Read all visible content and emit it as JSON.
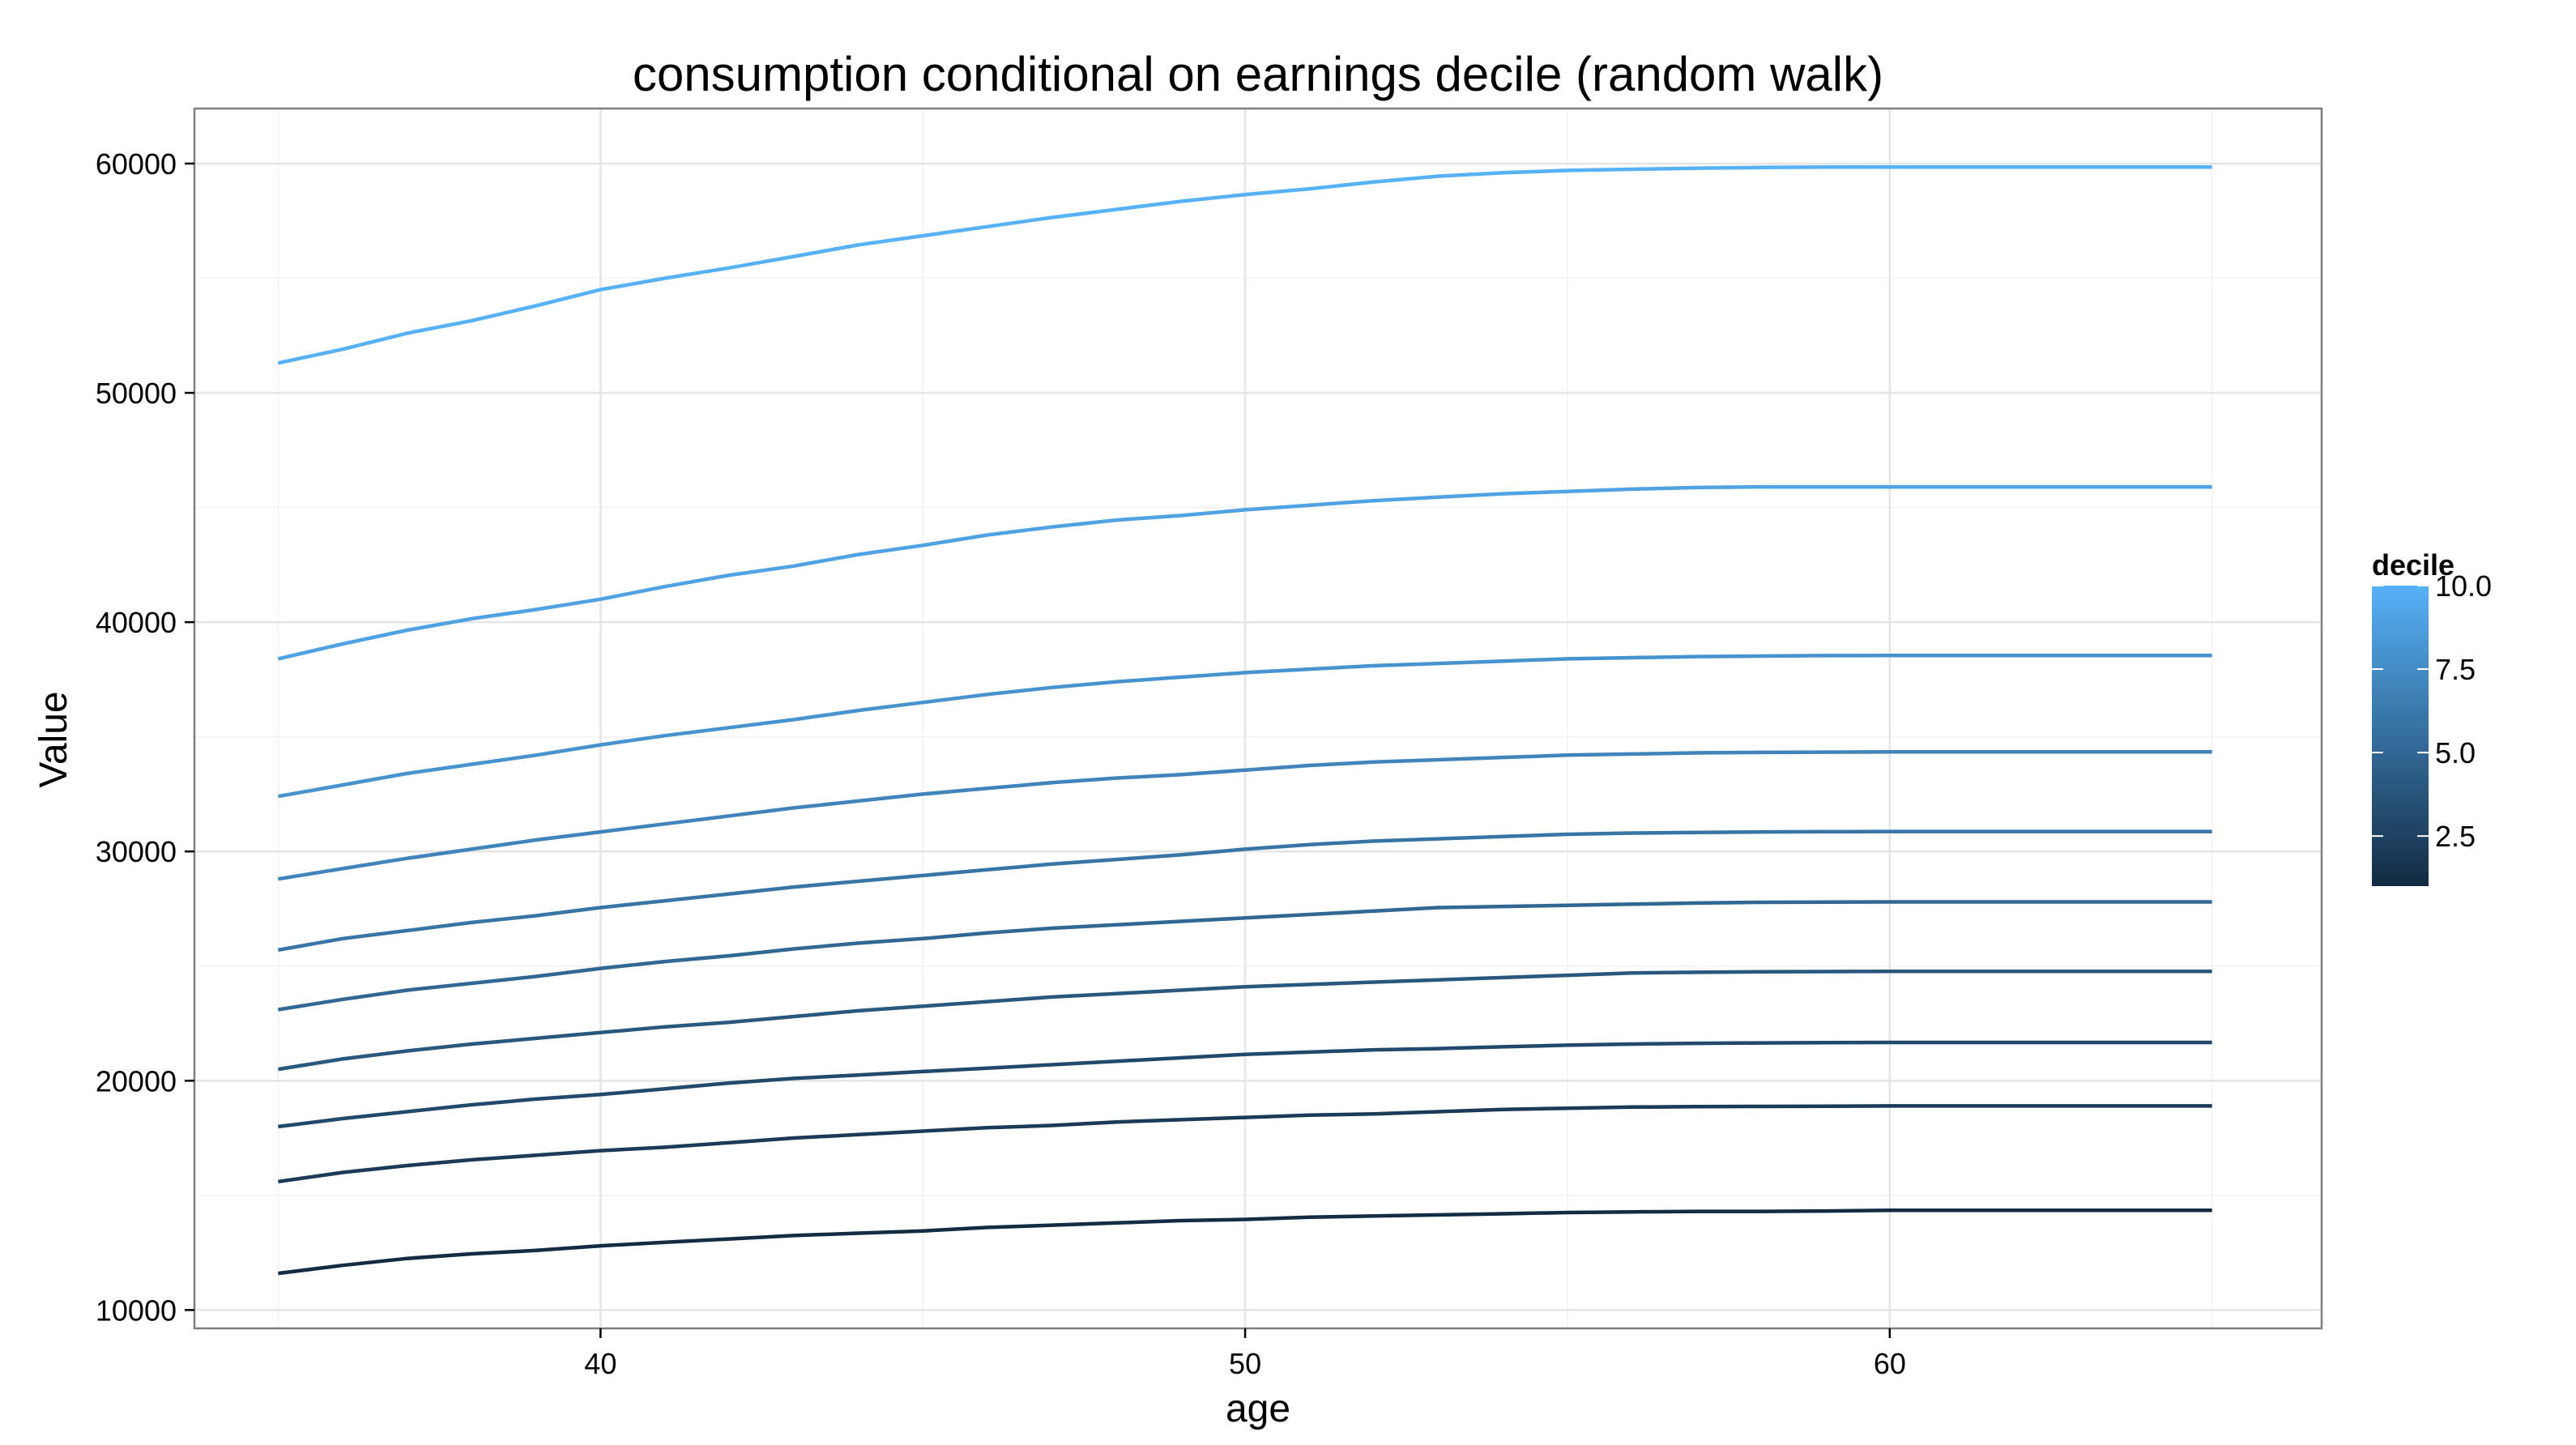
{
  "chart_data": {
    "type": "line",
    "title": "consumption conditional on earnings decile (random walk)",
    "xlabel": "age",
    "ylabel": "Value",
    "xlim": [
      33.7,
      66.7
    ],
    "ylim": [
      9200,
      62400
    ],
    "x_ticks": [
      40,
      50,
      60
    ],
    "y_ticks": [
      10000,
      20000,
      30000,
      40000,
      50000,
      60000
    ],
    "grid": true,
    "legend": {
      "title": "decile",
      "type": "colorbar",
      "placement": "right",
      "range": [
        1,
        10
      ],
      "ticks": [
        "2.5",
        "5.0",
        "7.5",
        "10.0"
      ],
      "tick_values": [
        2.5,
        5.0,
        7.5,
        10.0
      ],
      "low_color": "#132B43",
      "high_color": "#56B1F7"
    },
    "x": [
      35,
      36,
      37,
      38,
      39,
      40,
      41,
      42,
      43,
      44,
      45,
      46,
      47,
      48,
      49,
      50,
      51,
      52,
      53,
      54,
      55,
      56,
      57,
      58,
      59,
      60,
      61,
      62,
      63,
      64,
      65
    ],
    "series": [
      {
        "decile": 1,
        "values": [
          11600,
          11950,
          12250,
          12450,
          12600,
          12800,
          12950,
          13100,
          13250,
          13350,
          13450,
          13600,
          13700,
          13800,
          13900,
          13950,
          14050,
          14100,
          14150,
          14200,
          14250,
          14280,
          14300,
          14300,
          14320,
          14350,
          14350,
          14350,
          14350,
          14350,
          14350
        ]
      },
      {
        "decile": 2,
        "values": [
          15600,
          16000,
          16300,
          16550,
          16750,
          16950,
          17100,
          17300,
          17500,
          17650,
          17800,
          17950,
          18050,
          18200,
          18300,
          18400,
          18500,
          18550,
          18650,
          18750,
          18800,
          18850,
          18870,
          18880,
          18890,
          18900,
          18900,
          18900,
          18900,
          18900,
          18900
        ]
      },
      {
        "decile": 3,
        "values": [
          18000,
          18350,
          18650,
          18950,
          19200,
          19400,
          19650,
          19900,
          20100,
          20250,
          20400,
          20550,
          20700,
          20850,
          21000,
          21150,
          21250,
          21350,
          21400,
          21480,
          21550,
          21600,
          21630,
          21650,
          21660,
          21670,
          21670,
          21670,
          21670,
          21670,
          21670
        ]
      },
      {
        "decile": 4,
        "values": [
          20500,
          20950,
          21300,
          21600,
          21850,
          22100,
          22350,
          22550,
          22800,
          23050,
          23250,
          23450,
          23650,
          23800,
          23950,
          24100,
          24200,
          24300,
          24400,
          24500,
          24600,
          24700,
          24730,
          24750,
          24760,
          24770,
          24770,
          24770,
          24770,
          24770,
          24770
        ]
      },
      {
        "decile": 5,
        "values": [
          23100,
          23550,
          23950,
          24250,
          24550,
          24900,
          25200,
          25450,
          25750,
          26000,
          26200,
          26450,
          26650,
          26800,
          26950,
          27100,
          27250,
          27400,
          27550,
          27600,
          27650,
          27700,
          27750,
          27780,
          27790,
          27800,
          27800,
          27800,
          27800,
          27800,
          27800
        ]
      },
      {
        "decile": 6,
        "values": [
          25700,
          26200,
          26550,
          26900,
          27200,
          27550,
          27850,
          28150,
          28450,
          28700,
          28950,
          29200,
          29450,
          29650,
          29850,
          30100,
          30300,
          30450,
          30550,
          30650,
          30750,
          30800,
          30830,
          30850,
          30860,
          30870,
          30870,
          30870,
          30870,
          30870,
          30870
        ]
      },
      {
        "decile": 7,
        "values": [
          28800,
          29250,
          29700,
          30100,
          30500,
          30850,
          31200,
          31550,
          31900,
          32200,
          32500,
          32750,
          33000,
          33200,
          33350,
          33550,
          33750,
          33900,
          34000,
          34100,
          34200,
          34250,
          34300,
          34320,
          34330,
          34340,
          34340,
          34340,
          34340,
          34340,
          34340
        ]
      },
      {
        "decile": 8,
        "values": [
          32400,
          32900,
          33400,
          33800,
          34200,
          34650,
          35050,
          35400,
          35750,
          36150,
          36500,
          36850,
          37150,
          37400,
          37600,
          37800,
          37950,
          38100,
          38200,
          38300,
          38400,
          38450,
          38500,
          38520,
          38540,
          38550,
          38550,
          38550,
          38550,
          38550,
          38550
        ]
      },
      {
        "decile": 9,
        "values": [
          38400,
          39050,
          39650,
          40150,
          40550,
          41000,
          41550,
          42050,
          42450,
          42950,
          43350,
          43800,
          44150,
          44450,
          44650,
          44900,
          45100,
          45300,
          45450,
          45600,
          45700,
          45800,
          45870,
          45900,
          45900,
          45900,
          45900,
          45900,
          45900,
          45900,
          45900
        ]
      },
      {
        "decile": 10,
        "values": [
          51300,
          51900,
          52600,
          53150,
          53800,
          54500,
          55000,
          55450,
          55950,
          56450,
          56850,
          57250,
          57650,
          58000,
          58350,
          58650,
          58900,
          59200,
          59450,
          59600,
          59700,
          59750,
          59800,
          59830,
          59850,
          59850,
          59850,
          59850,
          59850,
          59850,
          59850
        ]
      }
    ]
  }
}
